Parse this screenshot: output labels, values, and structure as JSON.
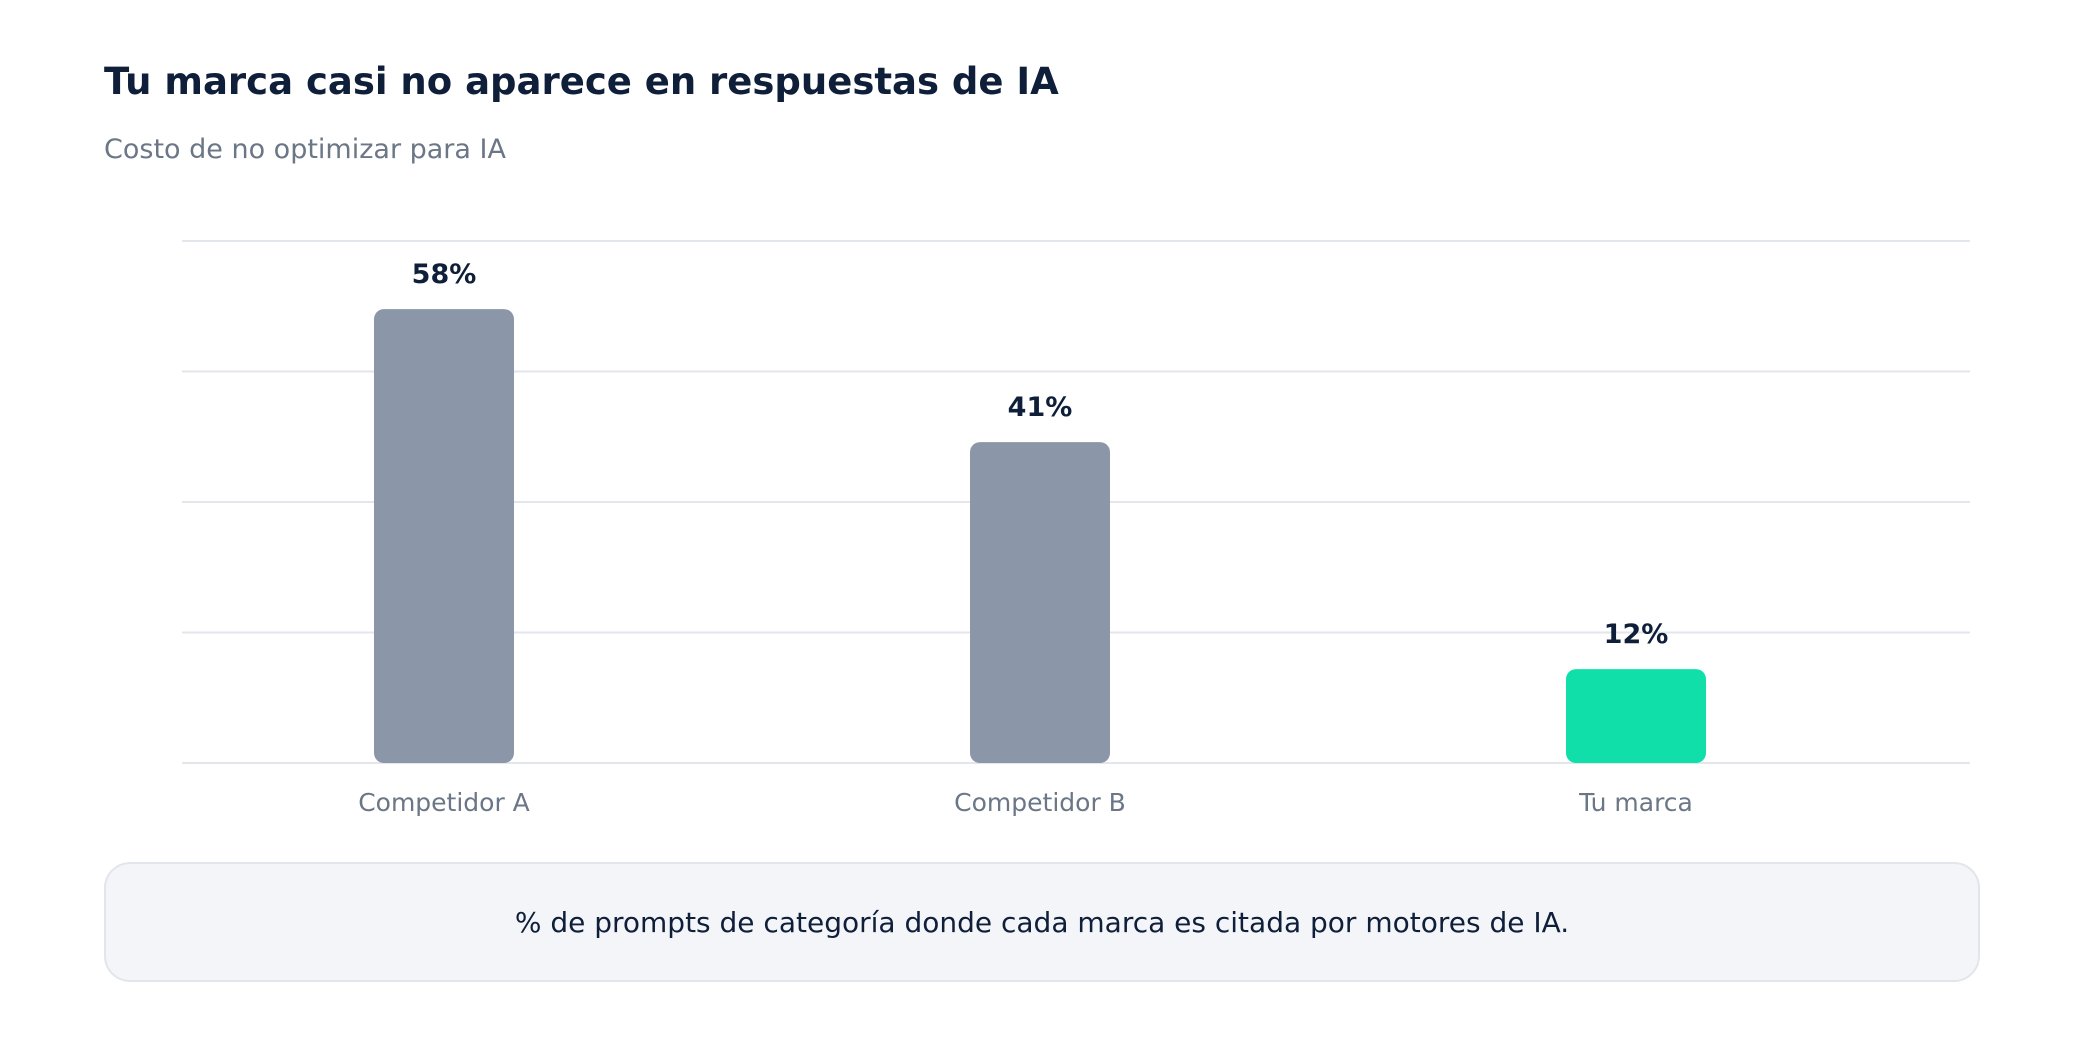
{
  "header": {
    "title": "Tu marca casi no aparece en respuestas de IA",
    "subtitle": "Costo de no optimizar para IA"
  },
  "chart_data": {
    "type": "bar",
    "categories": [
      "Competidor A",
      "Competidor B",
      "Tu marca"
    ],
    "values": [
      58,
      41,
      12
    ],
    "value_labels": [
      "58%",
      "41%",
      "12%"
    ],
    "ylim": [
      0,
      66.7
    ],
    "grid": true,
    "colors": [
      "#8b96a8",
      "#8b96a8",
      "#10dfaa"
    ]
  },
  "footnote": {
    "text": "% de prompts de categoría donde cada marca es citada por motores de IA."
  },
  "colors": {
    "title": "#0f1f3a",
    "muted": "#6b7686",
    "grid": "#e3e6eb",
    "bar_muted": "#8b96a8",
    "bar_accent": "#10dfaa"
  }
}
